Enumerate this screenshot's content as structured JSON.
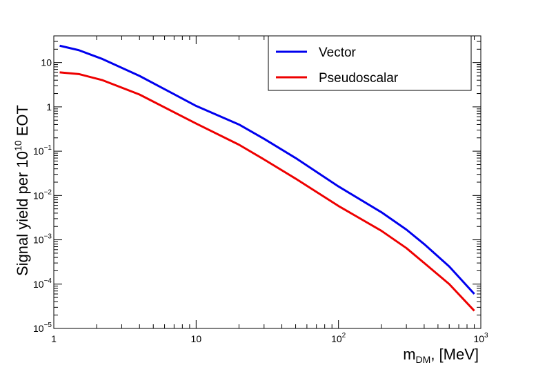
{
  "chart_data": {
    "type": "line",
    "xscale": "log",
    "yscale": "log",
    "xlim": [
      1,
      1000
    ],
    "ylim": [
      1e-05,
      40
    ],
    "xlabel": {
      "main": "m",
      "sub": "DM",
      "rest": ", [MeV]"
    },
    "ylabel": {
      "main": "Signal yield per 10",
      "sup": "10",
      "rest": " EOT"
    },
    "x_ticks": [
      {
        "value": 1,
        "base": "1",
        "exp": ""
      },
      {
        "value": 10,
        "base": "10",
        "exp": ""
      },
      {
        "value": 100,
        "base": "10",
        "exp": "2"
      },
      {
        "value": 1000,
        "base": "10",
        "exp": "3"
      }
    ],
    "y_ticks": [
      {
        "value": 1e-05,
        "base": "10",
        "exp": "−5"
      },
      {
        "value": 0.0001,
        "base": "10",
        "exp": "−4"
      },
      {
        "value": 0.001,
        "base": "10",
        "exp": "−3"
      },
      {
        "value": 0.01,
        "base": "10",
        "exp": "−2"
      },
      {
        "value": 0.1,
        "base": "10",
        "exp": "−1"
      },
      {
        "value": 1,
        "base": "1",
        "exp": ""
      },
      {
        "value": 10,
        "base": "10",
        "exp": ""
      }
    ],
    "grid": false,
    "legend": {
      "position": "top-right"
    },
    "series": [
      {
        "name": "Vector",
        "color": "#0000ee",
        "points": [
          [
            1.1,
            24
          ],
          [
            1.5,
            19
          ],
          [
            2.2,
            12
          ],
          [
            4,
            5
          ],
          [
            10,
            1.05
          ],
          [
            20,
            0.4
          ],
          [
            30,
            0.19
          ],
          [
            50,
            0.07
          ],
          [
            100,
            0.016
          ],
          [
            200,
            0.0042
          ],
          [
            300,
            0.0017
          ],
          [
            400,
            0.0008
          ],
          [
            600,
            0.00025
          ],
          [
            900,
            6e-05
          ]
        ]
      },
      {
        "name": "Pseudoscalar",
        "color": "#ee0000",
        "points": [
          [
            1.1,
            6
          ],
          [
            1.5,
            5.5
          ],
          [
            2.2,
            4
          ],
          [
            4,
            1.9
          ],
          [
            10,
            0.42
          ],
          [
            20,
            0.14
          ],
          [
            30,
            0.065
          ],
          [
            50,
            0.024
          ],
          [
            100,
            0.0058
          ],
          [
            200,
            0.0016
          ],
          [
            300,
            0.00065
          ],
          [
            400,
            0.0003
          ],
          [
            600,
            0.0001
          ],
          [
            900,
            2.5e-05
          ]
        ]
      }
    ]
  }
}
